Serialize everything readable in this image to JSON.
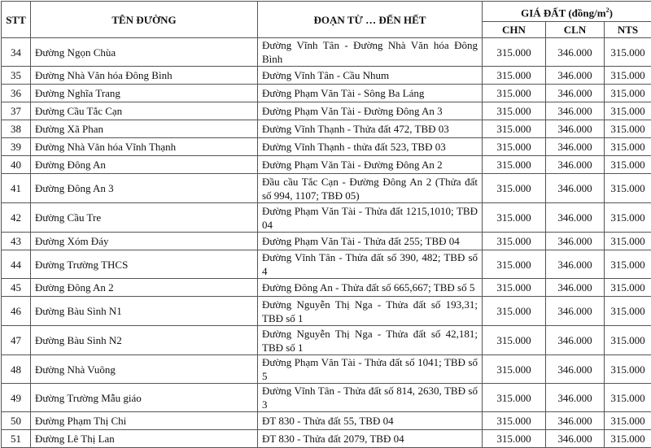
{
  "header": {
    "stt": "STT",
    "ten_duong": "TÊN ĐƯỜNG",
    "doan": "ĐOẠN TỪ … ĐẾN  HẾT",
    "gia_dat": "GIÁ ĐẤT (đồng/m",
    "gia_dat_sup": "2",
    "gia_dat_close": ")",
    "chn": "CHN",
    "cln": "CLN",
    "nts": "NTS"
  },
  "rows": [
    {
      "stt": "34",
      "name": "Đường Ngọn Chùa",
      "segment": "Đường Vĩnh Tân - Đường Nhà Văn hóa Đông Bình",
      "chn": "315.000",
      "cln": "346.000",
      "nts": "315.000"
    },
    {
      "stt": "35",
      "name": "Đường Nhà Văn hóa Đông Bình",
      "segment": "Đường Vĩnh Tân - Cầu Nhum",
      "chn": "315.000",
      "cln": "346.000",
      "nts": "315.000"
    },
    {
      "stt": "36",
      "name": "Đường Nghĩa Trang",
      "segment": "Đường Phạm Văn Tài - Sông Ba Láng",
      "chn": "315.000",
      "cln": "346.000",
      "nts": "315.000"
    },
    {
      "stt": "37",
      "name": "Đường Cầu Tắc Cạn",
      "segment": "Đường Phạm Văn Tài - Đường Đông An 3",
      "chn": "315.000",
      "cln": "346.000",
      "nts": "315.000"
    },
    {
      "stt": "38",
      "name": "Đường Xã Phan",
      "segment": "Đường Vĩnh Thạnh - Thửa đất 472, TBĐ 03",
      "chn": "315.000",
      "cln": "346.000",
      "nts": "315.000"
    },
    {
      "stt": "39",
      "name": "Đường Nhà Văn hóa Vĩnh Thạnh",
      "segment": "Đường Vĩnh Thạnh -  thửa đất 523, TBĐ 03",
      "chn": "315.000",
      "cln": "346.000",
      "nts": "315.000"
    },
    {
      "stt": "40",
      "name": "Đường Đông An",
      "segment": "Đường Phạm Văn Tài - Đường Đông An 2",
      "chn": "315.000",
      "cln": "346.000",
      "nts": "315.000"
    },
    {
      "stt": "41",
      "name": "Đường Đông An 3",
      "segment": "Đầu cầu Tắc Cạn - Đường Đông An 2 (Thửa đất số 994, 1107; TBĐ 05)",
      "chn": "315.000",
      "cln": "346.000",
      "nts": "315.000",
      "tall": true
    },
    {
      "stt": "42",
      "name": "Đường Cầu Tre",
      "segment": "Đường Phạm Văn Tài - Thửa đất 1215,1010; TBĐ 04",
      "chn": "315.000",
      "cln": "346.000",
      "nts": "315.000",
      "tall": true
    },
    {
      "stt": "43",
      "name": "Đường Xóm Đáy",
      "segment": "Đường Phạm Văn Tài - Thửa đất 255; TBĐ 04",
      "chn": "315.000",
      "cln": "346.000",
      "nts": "315.000"
    },
    {
      "stt": "44",
      "name": "Đường Trường THCS",
      "segment": "Đường Vĩnh Tân - Thửa đất số 390, 482; TBĐ số 4",
      "chn": "315.000",
      "cln": "346.000",
      "nts": "315.000"
    },
    {
      "stt": "45",
      "name": "Đường Đông An 2",
      "segment": "Đường Đông An - Thửa đất số 665,667; TBĐ số 5",
      "chn": "315.000",
      "cln": "346.000",
      "nts": "315.000"
    },
    {
      "stt": "46",
      "name": "Đường Bàu Sình N1",
      "segment": "Đường Nguyễn Thị Nga - Thửa đất số 193,31; TBĐ số 1",
      "chn": "315.000",
      "cln": "346.000",
      "nts": "315.000",
      "tall": true
    },
    {
      "stt": "47",
      "name": "Đường Bàu Sình N2",
      "segment": "Đường Nguyễn Thị Nga - Thửa đất số 42,181; TBĐ số 1",
      "chn": "315.000",
      "cln": "346.000",
      "nts": "315.000",
      "tall": true
    },
    {
      "stt": "48",
      "name": "Đường Nhà Vuông",
      "segment": "Đường Phạm Văn Tài - Thửa đất số 1041; TBĐ số 5",
      "chn": "315.000",
      "cln": "346.000",
      "nts": "315.000"
    },
    {
      "stt": "49",
      "name": "Đường Trường Mẫu giáo",
      "segment": "Đường Vĩnh Tân - Thửa đất số 814, 2630, TBĐ số 3",
      "chn": "315.000",
      "cln": "346.000",
      "nts": "315.000"
    },
    {
      "stt": "50",
      "name": "Đường Phạm Thị Chi",
      "segment": "ĐT 830 - Thửa đất 55, TBĐ 04",
      "chn": "315.000",
      "cln": "346.000",
      "nts": "315.000"
    },
    {
      "stt": "51",
      "name": "Đường Lê Thị Lan",
      "segment": "ĐT 830 - Thửa đất 2079, TBĐ 04",
      "chn": "315.000",
      "cln": "346.000",
      "nts": "315.000"
    }
  ]
}
